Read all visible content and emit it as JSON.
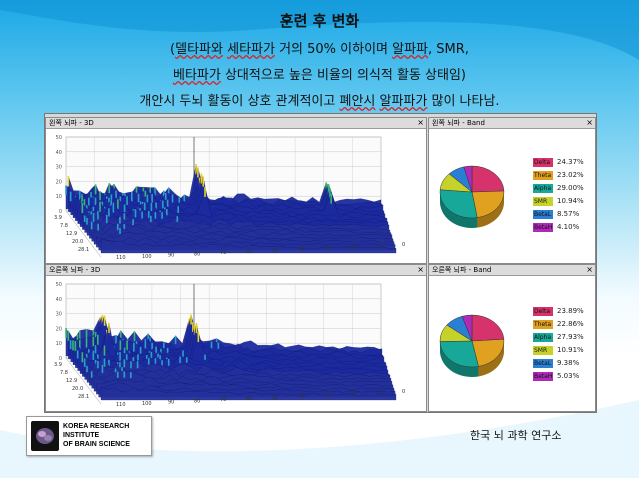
{
  "slide": {
    "title": "훈련 후 변화",
    "line2_a": "(",
    "line2_b": "델타파와",
    "line2_c": " ",
    "line2_d": "세타파가",
    "line2_e": " 거의 50% 이하이며 ",
    "line2_f": "알파파",
    "line2_g": ", SMR,",
    "line3_a": "베타파가",
    "line3_b": " 상대적으로 높은 비율의 의식적 활동 상태임)",
    "line4_a": "개안시 두뇌 활동이 상호 관계적이고 ",
    "line4_b": "폐안시",
    "line4_c": " ",
    "line4_d": "알파파가",
    "line4_e": " 많이 나타남.",
    "institute": "한국 뇌 과학 연구소"
  },
  "logo": {
    "line1": "KOREA RESEARCH",
    "line2": "INSTITUTE",
    "line3": "OF BRAIN SCIENCE"
  },
  "panels": {
    "left_3d_title": "왼쪽 뇌파 - 3D",
    "left_band_title": "왼쪽 뇌파 - Band",
    "right_3d_title": "오른쪽 뇌파 - 3D",
    "right_band_title": "오른쪽 뇌파 - Band",
    "close": "×"
  },
  "axis3d": {
    "z_ticks": [
      "50",
      "40",
      "30",
      "20",
      "10",
      "0"
    ],
    "freq_ticks": [
      "3.9",
      "7.8",
      "12.9",
      "20.0",
      "28.1"
    ],
    "time_ticks": [
      "110",
      "100",
      "90",
      "80",
      "70",
      "60",
      "50",
      "40",
      "30",
      "20",
      "10",
      "0"
    ]
  },
  "band_colors": {
    "Delta": "#d6336c",
    "Theta": "#e0a020",
    "Alpha": "#18a89a",
    "SMR": "#c6d22a",
    "BetaL": "#2a7fd4",
    "BetaH": "#b02ab8"
  },
  "chart_data": [
    {
      "type": "pie",
      "title": "왼쪽 뇌파 - Band",
      "labels": [
        "Delta",
        "Theta",
        "Alpha",
        "SMR",
        "BetaL",
        "BetaH"
      ],
      "values": [
        24.37,
        23.02,
        29.0,
        10.94,
        8.57,
        4.1
      ],
      "value_labels": [
        "24.37%",
        "23.02%",
        "29.00%",
        "10.94%",
        "8.57%",
        "4.10%"
      ]
    },
    {
      "type": "pie",
      "title": "오른쪽 뇌파 - Band",
      "labels": [
        "Delta",
        "Theta",
        "Alpha",
        "SMR",
        "BetaL",
        "BetaH"
      ],
      "values": [
        23.89,
        22.86,
        27.93,
        10.91,
        9.38,
        5.03
      ],
      "value_labels": [
        "23.89%",
        "22.86%",
        "27.93%",
        "10.91%",
        "9.38%",
        "5.03%"
      ]
    }
  ]
}
